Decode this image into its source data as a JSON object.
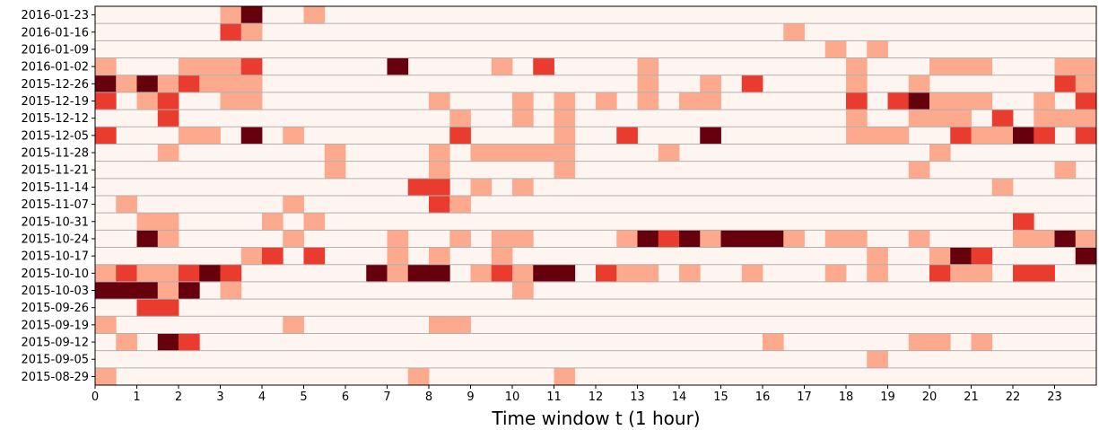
{
  "chart_data": {
    "type": "heatmap",
    "title": "",
    "xlabel": "Time window t (1 hour)",
    "ylabel": "",
    "x_range": [
      0,
      24
    ],
    "x_bin_width": 0.5,
    "x_tick_labels": [
      "0",
      "1",
      "2",
      "3",
      "4",
      "5",
      "6",
      "7",
      "8",
      "9",
      "10",
      "11",
      "12",
      "13",
      "14",
      "15",
      "16",
      "17",
      "18",
      "19",
      "20",
      "21",
      "22",
      "23"
    ],
    "y_tick_labels": [
      "2016-01-23",
      "2016-01-16",
      "2016-01-09",
      "2016-01-02",
      "2015-12-26",
      "2015-12-19",
      "2015-12-12",
      "2015-12-05",
      "2015-11-28",
      "2015-11-21",
      "2015-11-14",
      "2015-11-07",
      "2015-10-31",
      "2015-10-24",
      "2015-10-17",
      "2015-10-10",
      "2015-10-03",
      "2015-09-26",
      "2015-09-19",
      "2015-09-12",
      "2015-09-05",
      "2015-08-29"
    ],
    "colormap": "Reds",
    "level_colors": [
      "#fff5f0",
      "#fca98e",
      "#e93b2e",
      "#67000d"
    ],
    "value_range": [
      0,
      3
    ],
    "rows": [
      {
        "week": "2016-01-23",
        "cells": [
          [
            3,
            1,
            1
          ],
          [
            3.5,
            1,
            3
          ],
          [
            5,
            1,
            1
          ]
        ]
      },
      {
        "week": "2016-01-16",
        "cells": [
          [
            3,
            1,
            2
          ],
          [
            3.5,
            1,
            1
          ],
          [
            16.5,
            1,
            1
          ]
        ]
      },
      {
        "week": "2016-01-09",
        "cells": [
          [
            17.5,
            1,
            1
          ],
          [
            18.5,
            1,
            1
          ]
        ]
      },
      {
        "week": "2016-01-02",
        "cells": [
          [
            0,
            1,
            1
          ],
          [
            2,
            3,
            1
          ],
          [
            3.5,
            1,
            2
          ],
          [
            7,
            1,
            3
          ],
          [
            9.5,
            1,
            1
          ],
          [
            10.5,
            1,
            2
          ],
          [
            13,
            1,
            1
          ],
          [
            18,
            1,
            1
          ],
          [
            20,
            3,
            1
          ],
          [
            23,
            2,
            1
          ]
        ]
      },
      {
        "week": "2015-12-26",
        "cells": [
          [
            0,
            1,
            3
          ],
          [
            0.5,
            1,
            1
          ],
          [
            1,
            1,
            3
          ],
          [
            1.5,
            1,
            1
          ],
          [
            2,
            1,
            2
          ],
          [
            2.5,
            3,
            1
          ],
          [
            13,
            1,
            1
          ],
          [
            14.5,
            1,
            1
          ],
          [
            15.5,
            1,
            2
          ],
          [
            18,
            1,
            1
          ],
          [
            19.5,
            1,
            1
          ],
          [
            23,
            1,
            2
          ],
          [
            23.5,
            1,
            1
          ]
        ]
      },
      {
        "week": "2015-12-19",
        "cells": [
          [
            0,
            1,
            2
          ],
          [
            1,
            1,
            1
          ],
          [
            1.5,
            1,
            2
          ],
          [
            3,
            2,
            1
          ],
          [
            8,
            1,
            1
          ],
          [
            10,
            1,
            1
          ],
          [
            11,
            1,
            1
          ],
          [
            12,
            1,
            1
          ],
          [
            13,
            1,
            1
          ],
          [
            14,
            1,
            1
          ],
          [
            14.5,
            1,
            1
          ],
          [
            18,
            1,
            2
          ],
          [
            19,
            1,
            2
          ],
          [
            19.5,
            1,
            3
          ],
          [
            20,
            3,
            1
          ],
          [
            22.5,
            1,
            1
          ],
          [
            23.5,
            1,
            2
          ]
        ]
      },
      {
        "week": "2015-12-12",
        "cells": [
          [
            1.5,
            1,
            2
          ],
          [
            8.5,
            1,
            1
          ],
          [
            10,
            1,
            1
          ],
          [
            11,
            1,
            1
          ],
          [
            18,
            1,
            1
          ],
          [
            19.5,
            3,
            1
          ],
          [
            21.5,
            1,
            2
          ],
          [
            22.5,
            3,
            1
          ]
        ]
      },
      {
        "week": "2015-12-05",
        "cells": [
          [
            0,
            1,
            2
          ],
          [
            2,
            2,
            1
          ],
          [
            3.5,
            1,
            3
          ],
          [
            4.5,
            1,
            1
          ],
          [
            8.5,
            1,
            2
          ],
          [
            11,
            1,
            1
          ],
          [
            12.5,
            1,
            2
          ],
          [
            14.5,
            1,
            3
          ],
          [
            18,
            3,
            1
          ],
          [
            20.5,
            1,
            2
          ],
          [
            21,
            2,
            1
          ],
          [
            22,
            1,
            3
          ],
          [
            22.5,
            1,
            2
          ],
          [
            23.5,
            1,
            2
          ]
        ]
      },
      {
        "week": "2015-11-28",
        "cells": [
          [
            1.5,
            1,
            1
          ],
          [
            5.5,
            1,
            1
          ],
          [
            8,
            1,
            1
          ],
          [
            9,
            5,
            1
          ],
          [
            13.5,
            1,
            1
          ],
          [
            20,
            1,
            1
          ]
        ]
      },
      {
        "week": "2015-11-21",
        "cells": [
          [
            5.5,
            1,
            1
          ],
          [
            8,
            1,
            1
          ],
          [
            11,
            1,
            1
          ],
          [
            19.5,
            1,
            1
          ],
          [
            23,
            1,
            1
          ]
        ]
      },
      {
        "week": "2015-11-14",
        "cells": [
          [
            7.5,
            2,
            2
          ],
          [
            9,
            1,
            1
          ],
          [
            10,
            1,
            1
          ],
          [
            21.5,
            1,
            1
          ]
        ]
      },
      {
        "week": "2015-11-07",
        "cells": [
          [
            0.5,
            1,
            1
          ],
          [
            4.5,
            1,
            1
          ],
          [
            8,
            1,
            2
          ],
          [
            8.5,
            1,
            1
          ]
        ]
      },
      {
        "week": "2015-10-31",
        "cells": [
          [
            1,
            2,
            1
          ],
          [
            4,
            1,
            1
          ],
          [
            5,
            1,
            1
          ],
          [
            22,
            1,
            2
          ]
        ]
      },
      {
        "week": "2015-10-24",
        "cells": [
          [
            1,
            1,
            3
          ],
          [
            1.5,
            1,
            1
          ],
          [
            4.5,
            1,
            1
          ],
          [
            7,
            1,
            1
          ],
          [
            8.5,
            1,
            1
          ],
          [
            9.5,
            2,
            1
          ],
          [
            12.5,
            1,
            1
          ],
          [
            13,
            1,
            3
          ],
          [
            13.5,
            1,
            2
          ],
          [
            14,
            1,
            3
          ],
          [
            14.5,
            1,
            1
          ],
          [
            15,
            3,
            3
          ],
          [
            16.5,
            1,
            1
          ],
          [
            17.5,
            2,
            1
          ],
          [
            19.5,
            1,
            1
          ],
          [
            22,
            2,
            1
          ],
          [
            23,
            1,
            3
          ],
          [
            23.5,
            1,
            1
          ]
        ]
      },
      {
        "week": "2015-10-17",
        "cells": [
          [
            3.5,
            1,
            1
          ],
          [
            4,
            1,
            2
          ],
          [
            5,
            1,
            2
          ],
          [
            7,
            1,
            1
          ],
          [
            8,
            1,
            1
          ],
          [
            9.5,
            1,
            1
          ],
          [
            18.5,
            1,
            1
          ],
          [
            20,
            1,
            1
          ],
          [
            20.5,
            1,
            3
          ],
          [
            21,
            1,
            2
          ],
          [
            23.5,
            1,
            3
          ]
        ]
      },
      {
        "week": "2015-10-10",
        "cells": [
          [
            0,
            1,
            1
          ],
          [
            0.5,
            1,
            2
          ],
          [
            1,
            2,
            1
          ],
          [
            2,
            1,
            2
          ],
          [
            2.5,
            1,
            3
          ],
          [
            3,
            1,
            2
          ],
          [
            6.5,
            1,
            3
          ],
          [
            7,
            1,
            1
          ],
          [
            7.5,
            2,
            3
          ],
          [
            9,
            1,
            1
          ],
          [
            9.5,
            1,
            2
          ],
          [
            10,
            1,
            1
          ],
          [
            10.5,
            2,
            3
          ],
          [
            12,
            1,
            2
          ],
          [
            12.5,
            2,
            1
          ],
          [
            14,
            1,
            1
          ],
          [
            15.5,
            1,
            1
          ],
          [
            17.5,
            1,
            1
          ],
          [
            18.5,
            1,
            1
          ],
          [
            20,
            1,
            2
          ],
          [
            20.5,
            2,
            1
          ],
          [
            22,
            2,
            2
          ]
        ]
      },
      {
        "week": "2015-10-03",
        "cells": [
          [
            0,
            3,
            3
          ],
          [
            1.5,
            1,
            1
          ],
          [
            2,
            1,
            3
          ],
          [
            3,
            1,
            1
          ],
          [
            10,
            1,
            1
          ]
        ]
      },
      {
        "week": "2015-09-26",
        "cells": [
          [
            1,
            2,
            2
          ]
        ]
      },
      {
        "week": "2015-09-19",
        "cells": [
          [
            0,
            1,
            1
          ],
          [
            4.5,
            1,
            1
          ],
          [
            8,
            2,
            1
          ]
        ]
      },
      {
        "week": "2015-09-12",
        "cells": [
          [
            0.5,
            1,
            1
          ],
          [
            1.5,
            1,
            3
          ],
          [
            2,
            1,
            2
          ],
          [
            16,
            1,
            1
          ],
          [
            19.5,
            2,
            1
          ],
          [
            21,
            1,
            1
          ]
        ]
      },
      {
        "week": "2015-09-05",
        "cells": [
          [
            18.5,
            1,
            1
          ]
        ]
      },
      {
        "week": "2015-08-29",
        "cells": [
          [
            0,
            1,
            1
          ],
          [
            7.5,
            1,
            1
          ],
          [
            11,
            1,
            1
          ]
        ]
      }
    ]
  }
}
